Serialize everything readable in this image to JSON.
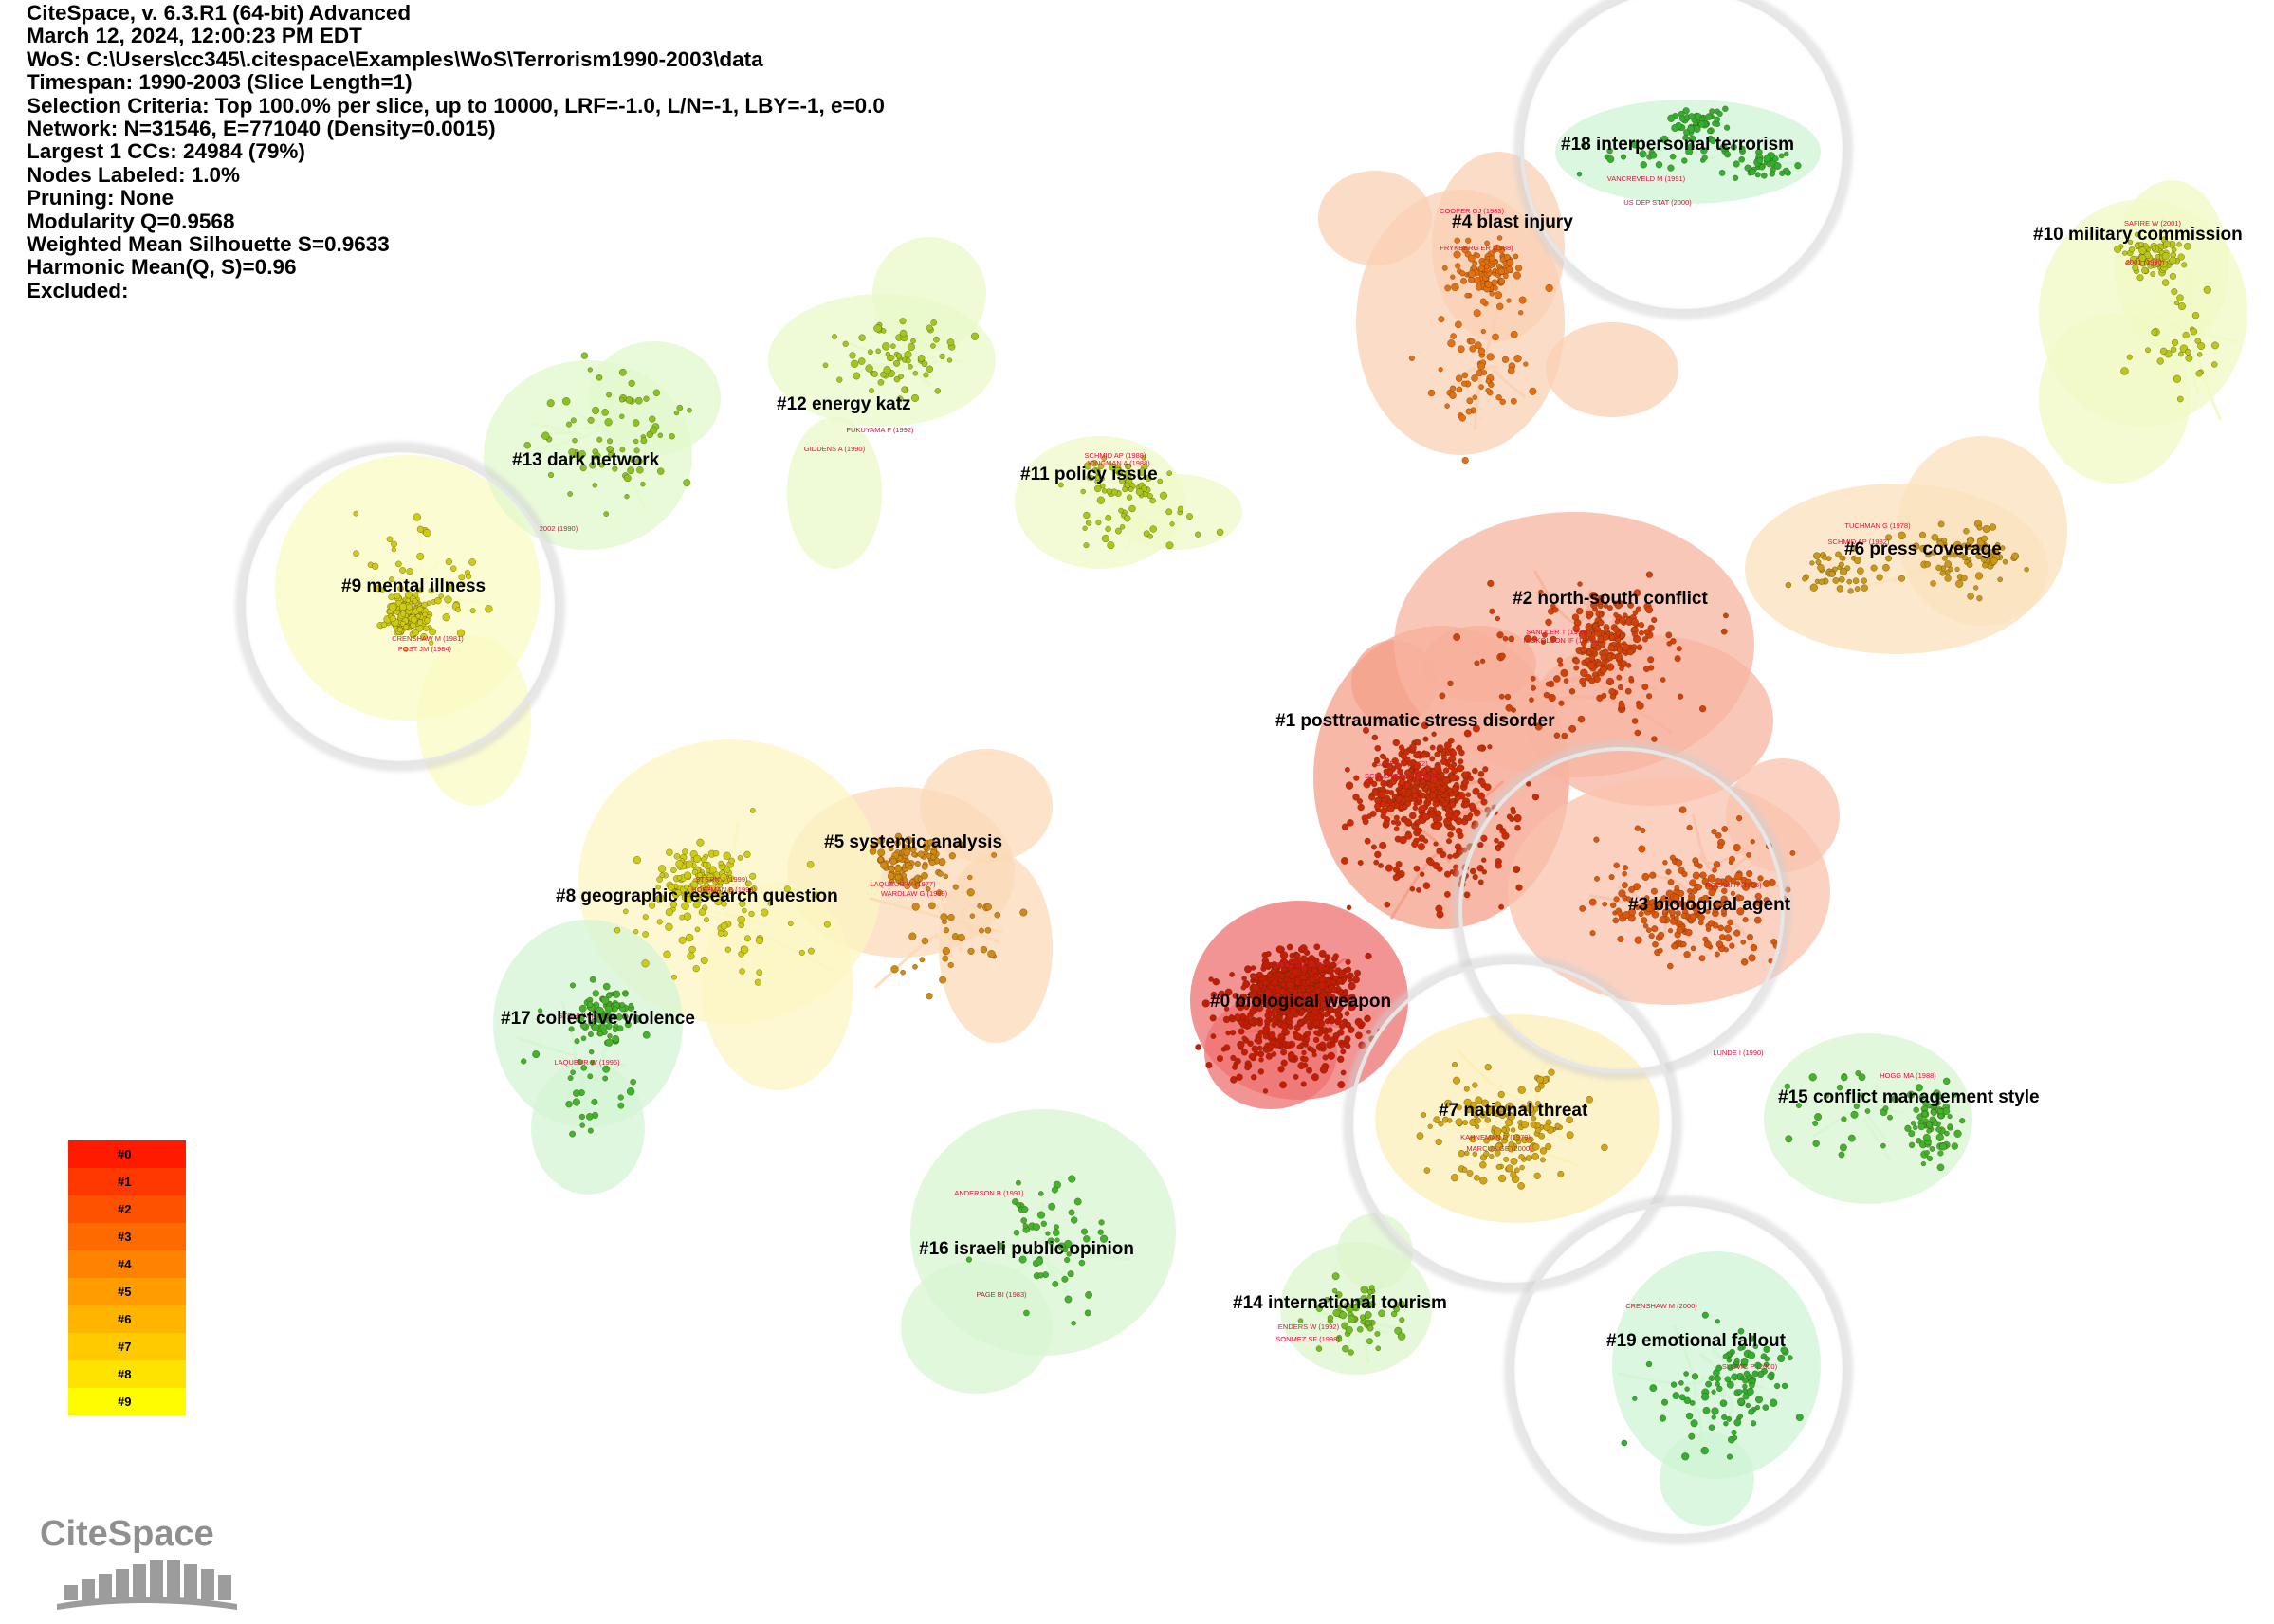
{
  "header": {
    "lines": [
      "CiteSpace, v. 6.3.R1 (64-bit) Advanced",
      "March 12, 2024, 12:00:23 PM EDT",
      "WoS: C:\\Users\\cc345\\.citespace\\Examples\\WoS\\Terrorism1990-2003\\data",
      "Timespan: 1990-2003 (Slice Length=1)",
      "Selection Criteria: Top 100.0% per slice, up to 10000, LRF=-1.0, L/N=-1, LBY=-1, e=0.0",
      "Network: N=31546, E=771040 (Density=0.0015)",
      "Largest 1 CCs: 24984 (79%)",
      "Nodes Labeled: 1.0%",
      "Pruning: None",
      "Modularity Q=0.9568",
      "Weighted Mean Silhouette S=0.9633",
      "Harmonic Mean(Q, S)=0.96",
      "Excluded:"
    ]
  },
  "colors": {
    "c0": "#c61c06",
    "c1": "#cf2a08",
    "c2": "#d4400a",
    "c3": "#dc560c",
    "c4": "#e47010",
    "c5": "#d08a14",
    "c6": "#c89818",
    "c7": "#d0a612",
    "c8": "#cccc10",
    "c9": "#cccc12",
    "green": "#38b030"
  },
  "clusters": [
    {
      "id": "c0",
      "label": "#0 biological weapon",
      "color": "#c61c06",
      "hull": "#ef7070"
    },
    {
      "id": "c1",
      "label": "#1 posttraumatic stress disorder",
      "color": "#cf2a08",
      "hull": "#f4a08a"
    },
    {
      "id": "c2",
      "label": "#2 north-south conflict",
      "color": "#d4400a",
      "hull": "#f7b4a0"
    },
    {
      "id": "c3",
      "label": "#3 biological agent",
      "color": "#dc560c",
      "hull": "#f9c3ae"
    },
    {
      "id": "c4",
      "label": "#4 blast injury",
      "color": "#e47010",
      "hull": "#f9d0b4"
    },
    {
      "id": "c5",
      "label": "#5 systemic analysis",
      "color": "#d08a14",
      "hull": "#fbd9b8"
    },
    {
      "id": "c6",
      "label": "#6 press coverage",
      "color": "#c89818",
      "hull": "#fbe2bc"
    },
    {
      "id": "c7",
      "label": "#7 national threat",
      "color": "#d0a612",
      "hull": "#fcefb8"
    },
    {
      "id": "c8",
      "label": "#8 geographic research question",
      "color": "#cccc10",
      "hull": "#fcf5c2"
    },
    {
      "id": "c9",
      "label": "#9 mental illness",
      "color": "#cccc12",
      "hull": "#fbfbc4"
    },
    {
      "id": "c10",
      "label": "#10 military commission",
      "color": "#b8c818",
      "hull": "#f0fac4"
    },
    {
      "id": "c11",
      "label": "#11 policy issue",
      "color": "#a8c818",
      "hull": "#effac8"
    },
    {
      "id": "c12",
      "label": "#12 energy katz",
      "color": "#a0c81c",
      "hull": "#e8fac8"
    },
    {
      "id": "c13",
      "label": "#13 dark network",
      "color": "#88c420",
      "hull": "#e2f8cc"
    },
    {
      "id": "c14",
      "label": "#14 international tourism",
      "color": "#70c024",
      "hull": "#dcf6cc"
    },
    {
      "id": "c15",
      "label": "#15 conflict management style",
      "color": "#40b42c",
      "hull": "#d8f6d2"
    },
    {
      "id": "c16",
      "label": "#16 israeli public opinion",
      "color": "#40b42c",
      "hull": "#d8f6d2"
    },
    {
      "id": "c17",
      "label": "#17 collective violence",
      "color": "#40b42c",
      "hull": "#d4f4d4"
    },
    {
      "id": "c18",
      "label": "#18 interpersonal terrorism",
      "color": "#30b030",
      "hull": "#d0f4d4"
    },
    {
      "id": "c19",
      "label": "#19 emotional fallout",
      "color": "#30b030",
      "hull": "#d0f4d4"
    }
  ],
  "author_labels": [
    "COOPER GJ (1983)",
    "FRYKBERG ER (1988)",
    "VANCREVELD M (1991)",
    "US DEP STAT (2000)",
    "SAFIRE W (2001)",
    "2001 (1990)",
    "TUCHMAN G (1978)",
    "SCHMID AP (1982)",
    "SANDLER T (1993)",
    "NICKOLSON IF (1988)",
    "GALEA S (2002)",
    "SCHUSTER MA (2001)",
    "FRANZ DR (1997)",
    "NOZAKI H (1995)",
    "LUNDE I (1990)",
    "HOGG MA (1988)",
    "KAHNEMAN D (1979)",
    "MARCUS GE (2000)",
    "CRENSHAW M (2000)",
    "SLOVIC P (2000)",
    "ENDERS W (1992)",
    "SONMEZ SF (1998)",
    "ANDERSON B (1991)",
    "PAGE BI (1983)",
    "LAQUEUR W (1996)",
    "STOHL M (1988)",
    "STERN J (1999)",
    "HOFFMAN B (1998)",
    "LAQUEUR W (1977)",
    "WARDLAW G (1989)",
    "CRENSHAW M (1981)",
    "POST JM (1984)",
    "2002 (1990)",
    "FUKUYAMA F (1992)",
    "GIDDENS A (1990)",
    "SCHMID AP (1988)",
    "JONGMAN A (1988)"
  ],
  "legend": {
    "items": [
      "#0",
      "#1",
      "#2",
      "#3",
      "#4",
      "#5",
      "#6",
      "#7",
      "#8",
      "#9"
    ],
    "colors": [
      "#ff1a00",
      "#ff3800",
      "#ff5200",
      "#ff6a00",
      "#ff8200",
      "#ff9c00",
      "#ffb400",
      "#ffcb00",
      "#ffe300",
      "#fffc00"
    ]
  },
  "logo": {
    "text": "CiteSpace"
  }
}
